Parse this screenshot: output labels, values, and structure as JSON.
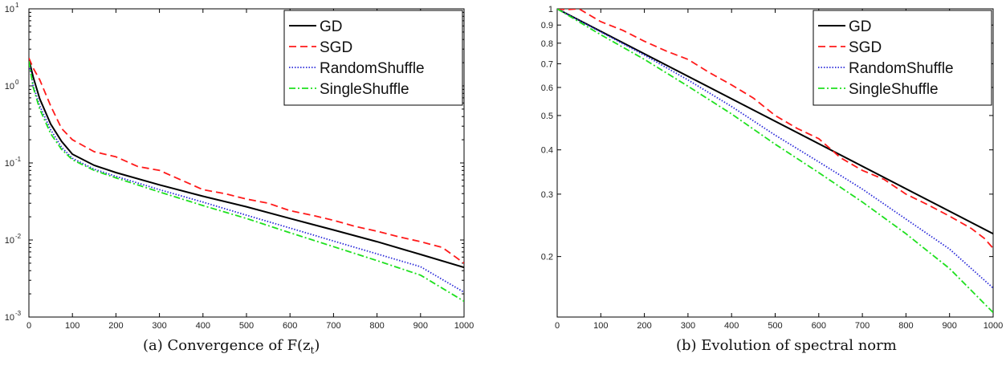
{
  "captions": {
    "a": "(a) Convergence of F(z",
    "a_sub": "t",
    "a_tail": ")",
    "b": "(b) Evolution of spectral norm"
  },
  "chart_data": [
    {
      "type": "line",
      "yscale": "log",
      "xlim": [
        0,
        1000
      ],
      "ylim": [
        0.001,
        10
      ],
      "grid": false,
      "legend_position": "top-right",
      "x_ticks": [
        "0",
        "100",
        "200",
        "300",
        "400",
        "500",
        "600",
        "700",
        "800",
        "900",
        "1000"
      ],
      "y_ticks": [
        {
          "value": 10,
          "base": "10",
          "exp": "1"
        },
        {
          "value": 1,
          "base": "10",
          "exp": "0"
        },
        {
          "value": 0.1,
          "base": "10",
          "exp": "-1"
        },
        {
          "value": 0.01,
          "base": "10",
          "exp": "-2"
        },
        {
          "value": 0.001,
          "base": "10",
          "exp": "-3"
        }
      ],
      "series": [
        {
          "name": "GD",
          "color": "#000000",
          "dash": "solid",
          "x": [
            0,
            10,
            25,
            50,
            75,
            100,
            150,
            200,
            300,
            400,
            500,
            600,
            700,
            800,
            900,
            1000
          ],
          "y": [
            2.2,
            1.3,
            0.68,
            0.32,
            0.19,
            0.13,
            0.093,
            0.075,
            0.052,
            0.037,
            0.027,
            0.019,
            0.0135,
            0.0095,
            0.0065,
            0.0044
          ]
        },
        {
          "name": "SGD",
          "color": "#ff1a1a",
          "dash": "dashed",
          "x": [
            0,
            10,
            25,
            50,
            75,
            100,
            150,
            200,
            250,
            300,
            350,
            400,
            450,
            500,
            550,
            600,
            650,
            700,
            750,
            800,
            850,
            900,
            950,
            1000
          ],
          "y": [
            2.3,
            1.7,
            1.2,
            0.55,
            0.28,
            0.2,
            0.14,
            0.12,
            0.09,
            0.08,
            0.06,
            0.045,
            0.04,
            0.034,
            0.03,
            0.024,
            0.021,
            0.018,
            0.015,
            0.013,
            0.011,
            0.0095,
            0.008,
            0.005
          ]
        },
        {
          "name": "RandomShuffle",
          "color": "#2b2bd9",
          "dash": "dotted",
          "x": [
            0,
            10,
            25,
            50,
            75,
            100,
            150,
            200,
            300,
            400,
            500,
            600,
            700,
            800,
            900,
            1000
          ],
          "y": [
            2.0,
            1.0,
            0.55,
            0.27,
            0.16,
            0.115,
            0.083,
            0.067,
            0.045,
            0.031,
            0.021,
            0.0143,
            0.0097,
            0.0066,
            0.0045,
            0.0021
          ]
        },
        {
          "name": "SingleShuffle",
          "color": "#1fe01f",
          "dash": "dashdot",
          "x": [
            0,
            10,
            25,
            50,
            75,
            100,
            150,
            200,
            300,
            400,
            500,
            600,
            700,
            800,
            900,
            1000
          ],
          "y": [
            2.1,
            0.95,
            0.5,
            0.24,
            0.15,
            0.11,
            0.08,
            0.064,
            0.042,
            0.028,
            0.019,
            0.0124,
            0.0082,
            0.0054,
            0.0035,
            0.0016
          ]
        }
      ]
    },
    {
      "type": "line",
      "yscale": "log",
      "xlim": [
        0,
        1000
      ],
      "ylim": [
        0.135,
        1
      ],
      "grid": false,
      "legend_position": "top-right",
      "x_ticks": [
        "0",
        "100",
        "200",
        "300",
        "400",
        "500",
        "600",
        "700",
        "800",
        "900",
        "1000"
      ],
      "y_ticks": [
        {
          "value": 1,
          "label": "1"
        },
        {
          "value": 0.9,
          "label": "0.9"
        },
        {
          "value": 0.8,
          "label": "0.8"
        },
        {
          "value": 0.7,
          "label": "0.7"
        },
        {
          "value": 0.6,
          "label": "0.6"
        },
        {
          "value": 0.5,
          "label": "0.5"
        },
        {
          "value": 0.4,
          "label": "0.4"
        },
        {
          "value": 0.3,
          "label": "0.3"
        },
        {
          "value": 0.2,
          "label": "0.2"
        }
      ],
      "series": [
        {
          "name": "GD",
          "color": "#000000",
          "dash": "solid",
          "x": [
            0,
            1000
          ],
          "y": [
            1.0,
            0.232
          ]
        },
        {
          "name": "SGD",
          "color": "#ff1a1a",
          "dash": "dashed",
          "x": [
            0,
            20,
            50,
            100,
            150,
            200,
            250,
            300,
            350,
            400,
            450,
            500,
            550,
            600,
            650,
            700,
            750,
            800,
            850,
            900,
            950,
            980,
            1000
          ],
          "y": [
            1.0,
            0.995,
            1.0,
            0.92,
            0.87,
            0.81,
            0.76,
            0.72,
            0.66,
            0.61,
            0.56,
            0.5,
            0.46,
            0.43,
            0.38,
            0.35,
            0.33,
            0.3,
            0.28,
            0.26,
            0.24,
            0.225,
            0.211
          ]
        },
        {
          "name": "RandomShuffle",
          "color": "#2b2bd9",
          "dash": "dotted",
          "x": [
            0,
            100,
            200,
            300,
            400,
            500,
            600,
            700,
            800,
            900,
            1000
          ],
          "y": [
            1.0,
            0.86,
            0.74,
            0.63,
            0.53,
            0.44,
            0.37,
            0.31,
            0.255,
            0.21,
            0.163
          ]
        },
        {
          "name": "SingleShuffle",
          "color": "#1fe01f",
          "dash": "dashdot",
          "x": [
            0,
            100,
            200,
            300,
            400,
            500,
            600,
            700,
            800,
            900,
            1000
          ],
          "y": [
            1.0,
            0.845,
            0.72,
            0.605,
            0.505,
            0.415,
            0.345,
            0.285,
            0.232,
            0.185,
            0.139
          ]
        }
      ]
    }
  ]
}
